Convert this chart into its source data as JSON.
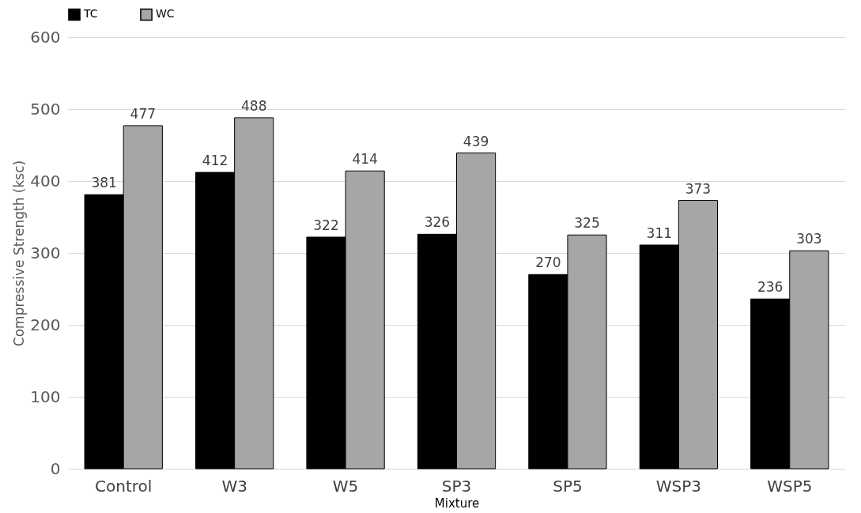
{
  "chart_data": {
    "type": "bar",
    "xlabel": "Mixture",
    "ylabel": "Compressive Strength (ksc)",
    "categories": [
      "Control",
      "W3",
      "W5",
      "SP3",
      "SP5",
      "WSP3",
      "WSP5"
    ],
    "series": [
      {
        "name": "TC",
        "color": "#000000",
        "values": [
          381,
          412,
          322,
          326,
          270,
          311,
          236
        ]
      },
      {
        "name": "WC",
        "color": "#a6a6a6",
        "values": [
          477,
          488,
          414,
          439,
          325,
          373,
          303
        ]
      }
    ],
    "ylim": [
      0,
      600
    ],
    "yticks": [
      0,
      100,
      200,
      300,
      400,
      500,
      600
    ],
    "grid": "y",
    "legend": "top",
    "data_labels": true
  }
}
